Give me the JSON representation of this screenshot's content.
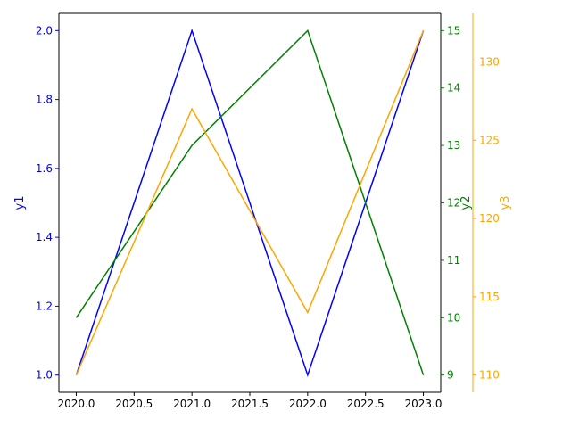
{
  "chart_data": {
    "type": "line",
    "x": [
      2020,
      2021,
      2022,
      2023
    ],
    "xlim": [
      2019.85,
      2023.15
    ],
    "xticks": [
      2020.0,
      2020.5,
      2021.0,
      2021.5,
      2022.0,
      2022.5,
      2023.0
    ],
    "xtick_labels": [
      "2020.0",
      "2020.5",
      "2021.0",
      "2021.5",
      "2022.0",
      "2022.5",
      "2023.0"
    ],
    "grid": false,
    "axes": [
      {
        "id": "y1",
        "side": "left",
        "label": "y1",
        "color": "#0000ff",
        "ylim": [
          0.95,
          2.05
        ],
        "ticks": [
          1.0,
          1.2,
          1.4,
          1.6,
          1.8,
          2.0
        ],
        "tick_labels": [
          "1.0",
          "1.2",
          "1.4",
          "1.6",
          "1.8",
          "2.0"
        ]
      },
      {
        "id": "y2",
        "side": "right",
        "label": "y2",
        "color": "#008000",
        "ylim": [
          8.7,
          15.3
        ],
        "ticks": [
          9,
          10,
          11,
          12,
          13,
          14,
          15
        ],
        "tick_labels": [
          "9",
          "10",
          "11",
          "12",
          "13",
          "14",
          "15"
        ]
      },
      {
        "id": "y3",
        "side": "right-outer",
        "label": "y3",
        "color": "#ffa500",
        "ylim": [
          108.9,
          133.1
        ],
        "ticks": [
          110,
          115,
          120,
          125,
          130
        ],
        "tick_labels": [
          "110",
          "115",
          "120",
          "125",
          "130"
        ]
      }
    ],
    "series": [
      {
        "axis": "y1",
        "color": "#0000ff",
        "values": [
          1.0,
          2.0,
          1.0,
          2.0
        ]
      },
      {
        "axis": "y2",
        "color": "#008000",
        "values": [
          10,
          13,
          15,
          9
        ]
      },
      {
        "axis": "y3",
        "color": "#ffa500",
        "values": [
          110,
          127,
          114,
          132
        ]
      }
    ]
  }
}
